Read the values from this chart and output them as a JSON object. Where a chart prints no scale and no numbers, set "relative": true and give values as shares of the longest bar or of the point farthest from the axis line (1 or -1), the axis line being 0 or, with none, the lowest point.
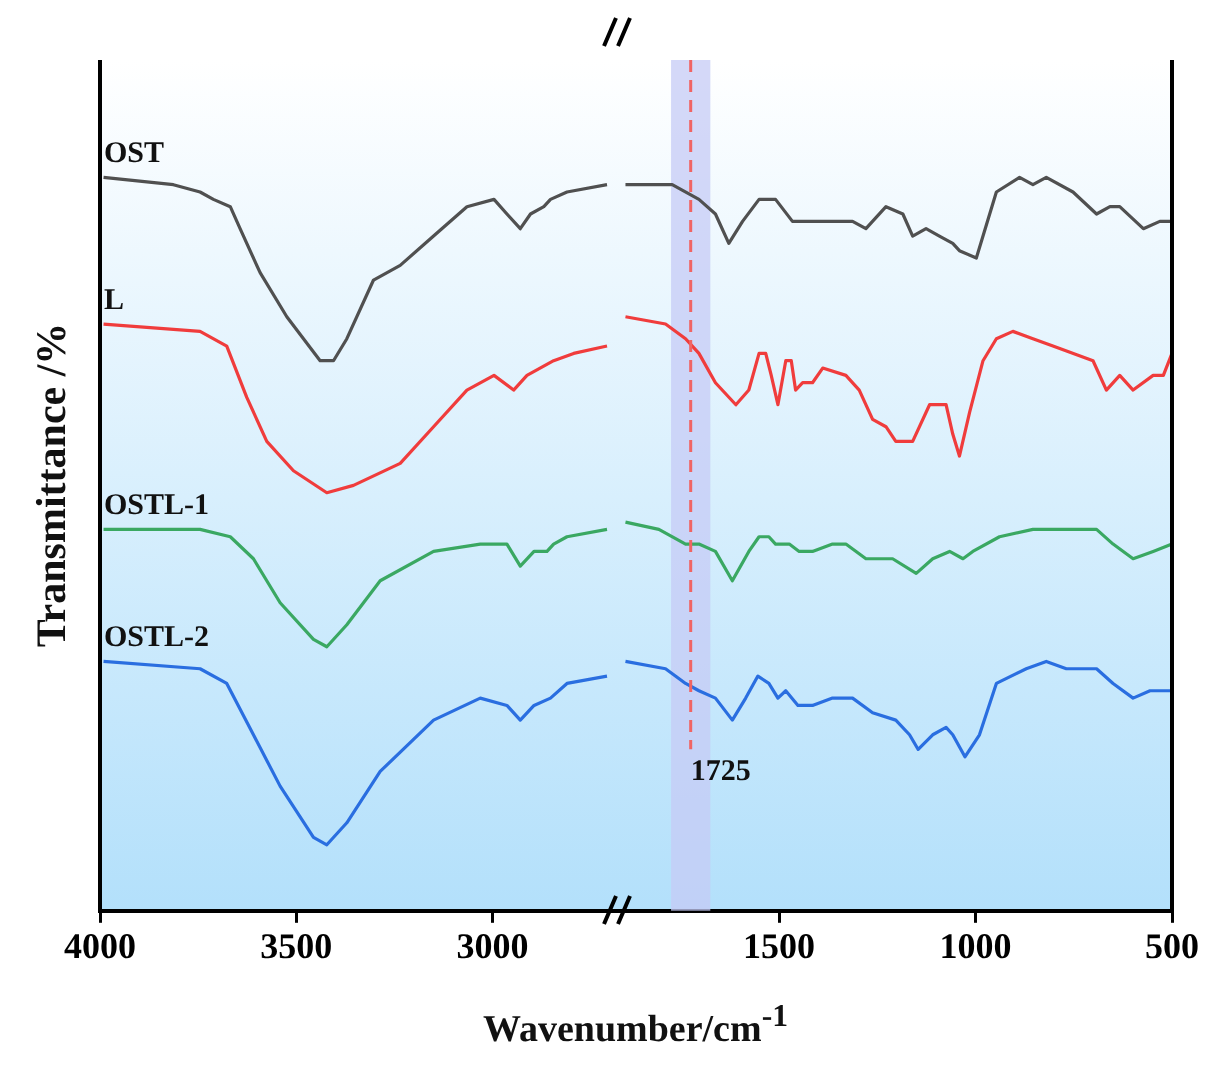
{
  "chart_data": [
    {
      "type": "line",
      "ylabel": "Transmittance /%",
      "xlabel": "Wavenumber/cm$^{-1}$",
      "relative": true,
      "tick_labels": "x",
      "xlim": [
        4000,
        2680
      ],
      "xticks": [
        4000,
        3500,
        3000
      ],
      "series": [
        {
          "name": "OST",
          "color": "#505050",
          "x": [
            3991,
            3813,
            3745,
            3711,
            3668,
            3643,
            3592,
            3524,
            3439,
            3405,
            3371,
            3303,
            3235,
            3150,
            3065,
            2996,
            2963,
            2929,
            2903,
            2869,
            2852,
            2810,
            2708
          ],
          "values": [
            1.0,
            0.99,
            0.98,
            0.97,
            0.96,
            0.93,
            0.87,
            0.81,
            0.75,
            0.75,
            0.78,
            0.86,
            0.88,
            0.92,
            0.96,
            0.97,
            0.95,
            0.93,
            0.95,
            0.96,
            0.97,
            0.98,
            0.99
          ]
        },
        {
          "name": "L",
          "color": "#f03c3c",
          "x": [
            3991,
            3745,
            3677,
            3626,
            3575,
            3507,
            3422,
            3354,
            3235,
            3150,
            3065,
            2996,
            2946,
            2912,
            2844,
            2793,
            2708
          ],
          "values": [
            0.8,
            0.79,
            0.77,
            0.7,
            0.64,
            0.6,
            0.57,
            0.58,
            0.61,
            0.66,
            0.71,
            0.73,
            0.71,
            0.73,
            0.75,
            0.76,
            0.77
          ]
        },
        {
          "name": "OSTL-1",
          "color": "#3aa862",
          "x": [
            3991,
            3745,
            3668,
            3609,
            3541,
            3456,
            3422,
            3371,
            3286,
            3150,
            3031,
            2963,
            2929,
            2894,
            2861,
            2844,
            2810,
            2708
          ],
          "values": [
            0.52,
            0.52,
            0.51,
            0.48,
            0.42,
            0.37,
            0.36,
            0.39,
            0.45,
            0.49,
            0.5,
            0.5,
            0.47,
            0.49,
            0.49,
            0.5,
            0.51,
            0.52
          ]
        },
        {
          "name": "OSTL-2",
          "color": "#2a6ee0",
          "x": [
            3991,
            3745,
            3677,
            3609,
            3541,
            3456,
            3422,
            3371,
            3286,
            3150,
            3031,
            2963,
            2929,
            2894,
            2852,
            2810,
            2708
          ],
          "values": [
            0.34,
            0.33,
            0.31,
            0.24,
            0.17,
            0.1,
            0.09,
            0.12,
            0.19,
            0.26,
            0.29,
            0.28,
            0.26,
            0.28,
            0.29,
            0.31,
            0.32
          ]
        }
      ]
    },
    {
      "type": "line",
      "relative": true,
      "tick_labels": "x",
      "xlim": [
        1910,
        500
      ],
      "xticks": [
        1500,
        1000,
        500
      ],
      "bands": [
        {
          "axis": "x",
          "from": 1775,
          "to": 1675,
          "color": "#c5cbf6"
        }
      ],
      "ref_lines": [
        {
          "axis": "x",
          "value": 1725,
          "label": "1725",
          "color": "#f06464",
          "line_style": "dashed"
        }
      ],
      "series": [
        {
          "color": "#505050",
          "x": [
            1891,
            1772,
            1704,
            1662,
            1628,
            1593,
            1551,
            1509,
            1466,
            1381,
            1356,
            1313,
            1279,
            1228,
            1185,
            1160,
            1126,
            1092,
            1058,
            1041,
            998,
            981,
            947,
            888,
            854,
            820,
            752,
            692,
            658,
            633,
            573,
            531,
            500
          ],
          "values": [
            0.99,
            0.99,
            0.97,
            0.95,
            0.91,
            0.94,
            0.97,
            0.97,
            0.94,
            0.94,
            0.94,
            0.94,
            0.93,
            0.96,
            0.95,
            0.92,
            0.93,
            0.92,
            0.91,
            0.9,
            0.89,
            0.92,
            0.98,
            1.0,
            0.99,
            1.0,
            0.98,
            0.95,
            0.96,
            0.96,
            0.93,
            0.94,
            0.94
          ]
        },
        {
          "color": "#f03c3c",
          "x": [
            1891,
            1789,
            1738,
            1704,
            1662,
            1610,
            1577,
            1551,
            1534,
            1520,
            1503,
            1483,
            1469,
            1458,
            1440,
            1415,
            1389,
            1330,
            1296,
            1262,
            1228,
            1203,
            1160,
            1117,
            1075,
            1058,
            1041,
            1015,
            981,
            947,
            905,
            854,
            803,
            701,
            667,
            633,
            599,
            548,
            522,
            500
          ],
          "values": [
            0.81,
            0.8,
            0.78,
            0.76,
            0.72,
            0.69,
            0.71,
            0.76,
            0.76,
            0.73,
            0.69,
            0.75,
            0.75,
            0.71,
            0.72,
            0.72,
            0.74,
            0.73,
            0.71,
            0.67,
            0.66,
            0.64,
            0.64,
            0.69,
            0.69,
            0.65,
            0.62,
            0.68,
            0.75,
            0.78,
            0.79,
            0.78,
            0.77,
            0.75,
            0.71,
            0.73,
            0.71,
            0.73,
            0.73,
            0.76
          ]
        },
        {
          "color": "#3aa862",
          "x": [
            1891,
            1806,
            1738,
            1704,
            1662,
            1619,
            1577,
            1551,
            1526,
            1509,
            1474,
            1449,
            1415,
            1364,
            1330,
            1279,
            1211,
            1151,
            1109,
            1066,
            1032,
            1007,
            939,
            854,
            803,
            692,
            650,
            599,
            548,
            500
          ],
          "values": [
            0.53,
            0.52,
            0.5,
            0.5,
            0.49,
            0.45,
            0.49,
            0.51,
            0.51,
            0.5,
            0.5,
            0.49,
            0.49,
            0.5,
            0.5,
            0.48,
            0.48,
            0.46,
            0.48,
            0.49,
            0.48,
            0.49,
            0.51,
            0.52,
            0.52,
            0.52,
            0.5,
            0.48,
            0.49,
            0.5
          ]
        },
        {
          "color": "#2a6ee0",
          "x": [
            1891,
            1789,
            1738,
            1704,
            1662,
            1619,
            1585,
            1554,
            1526,
            1503,
            1483,
            1452,
            1415,
            1364,
            1313,
            1262,
            1203,
            1168,
            1146,
            1109,
            1075,
            1058,
            1027,
            990,
            947,
            871,
            820,
            769,
            692,
            650,
            599,
            556,
            500
          ],
          "values": [
            0.34,
            0.33,
            0.31,
            0.3,
            0.29,
            0.26,
            0.29,
            0.32,
            0.31,
            0.29,
            0.3,
            0.28,
            0.28,
            0.29,
            0.29,
            0.27,
            0.26,
            0.24,
            0.22,
            0.24,
            0.25,
            0.24,
            0.21,
            0.24,
            0.31,
            0.33,
            0.34,
            0.33,
            0.33,
            0.31,
            0.29,
            0.3,
            0.3
          ]
        }
      ]
    }
  ]
}
